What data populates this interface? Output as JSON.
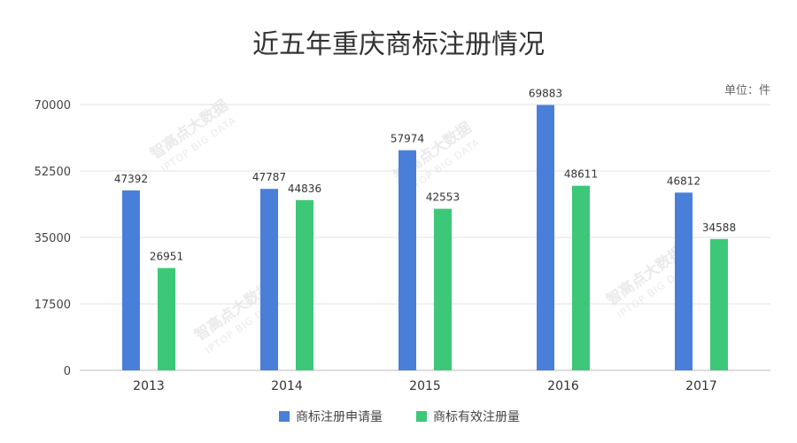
{
  "chart_data": {
    "type": "bar",
    "title": "近五年重庆商标注册情况",
    "unit_label": "单位：件",
    "categories": [
      "2013",
      "2014",
      "2015",
      "2016",
      "2017"
    ],
    "y_ticks": [
      "0",
      "17500",
      "35000",
      "52500",
      "70000"
    ],
    "ylim": [
      0,
      70000
    ],
    "grid": true,
    "legend_position": "bottom",
    "series": [
      {
        "name": "商标注册申请量",
        "color": "#4a7fd9",
        "values": [
          47392,
          47787,
          57974,
          69883,
          46812
        ],
        "labels": [
          "47392",
          "47787",
          "57974",
          "69883",
          "46812"
        ]
      },
      {
        "name": "商标有效注册量",
        "color": "#3cc878",
        "values": [
          26951,
          44836,
          42553,
          48611,
          34588
        ],
        "labels": [
          "26951",
          "44836",
          "42553",
          "48611",
          "34588"
        ]
      }
    ]
  },
  "watermark": {
    "text": "智高点大数据",
    "sub": "IPTOP BIG DATA"
  }
}
